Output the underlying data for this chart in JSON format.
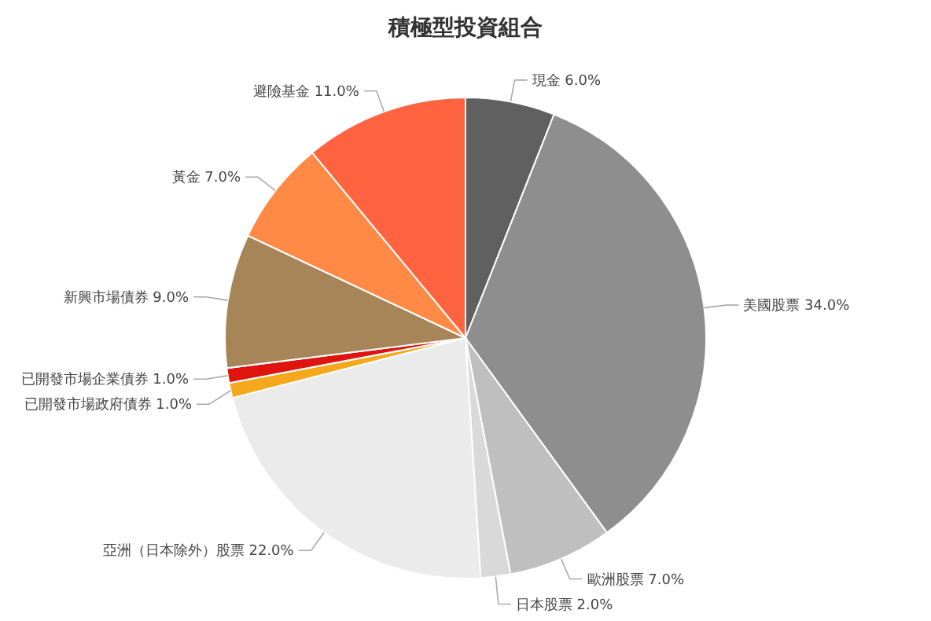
{
  "chart_data": {
    "type": "pie",
    "title": "積極型投資組合",
    "categories": [
      "現金",
      "美國股票",
      "歐洲股票",
      "日本股票",
      "亞洲（日本除外）股票",
      "已開發市場政府債券",
      "已開發市場企業債券",
      "新興市場債券",
      "黃金",
      "避險基金"
    ],
    "values": [
      6,
      34,
      7,
      2,
      22,
      1,
      1,
      9,
      7,
      11
    ],
    "value_labels": [
      "6.0%",
      "34.0%",
      "7.0%",
      "2.0%",
      "22.0%",
      "1.0%",
      "1.0%",
      "9.0%",
      "7.0%",
      "11.0%"
    ],
    "colors": [
      "#606060",
      "#8e8e8e",
      "#bfbfbf",
      "#d9d9d9",
      "#ebebeb",
      "#f5a81c",
      "#e0140f",
      "#a88558",
      "#ff8a45",
      "#ff6340"
    ]
  }
}
